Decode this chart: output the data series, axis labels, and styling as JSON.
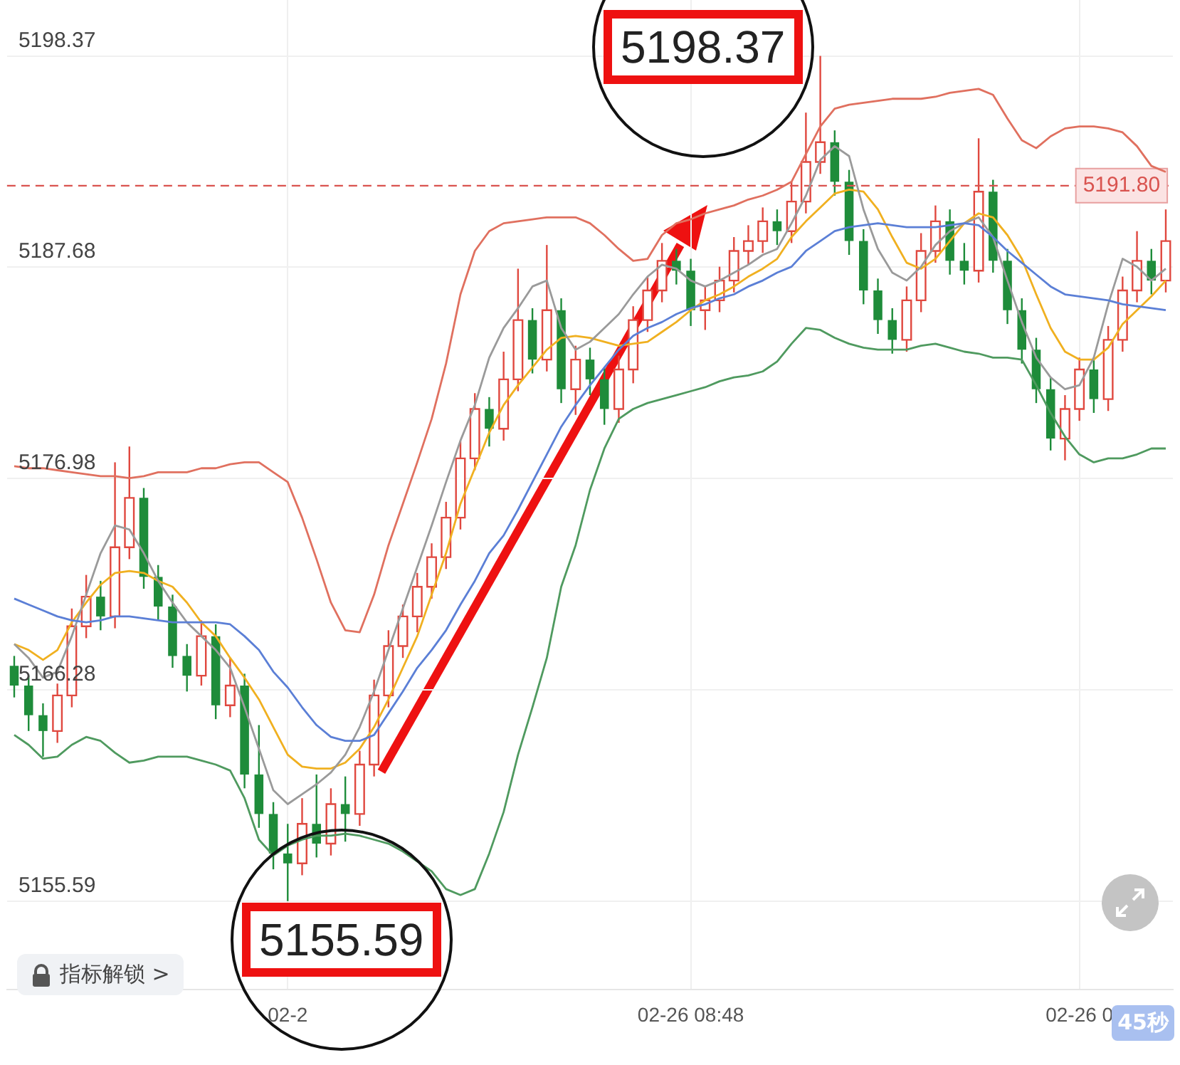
{
  "chart_data": {
    "type": "candlestick",
    "categories": [
      null,
      null,
      null,
      null,
      null,
      null,
      null,
      null,
      null,
      null,
      null,
      null,
      null,
      null,
      null,
      null,
      null,
      null,
      null,
      "02-2",
      null,
      null,
      null,
      null,
      null,
      null,
      null,
      null,
      null,
      null,
      null,
      null,
      null,
      null,
      null,
      null,
      null,
      null,
      null,
      null,
      null,
      null,
      null,
      null,
      null,
      null,
      null,
      "02-26 08:48",
      null,
      null,
      null,
      null,
      null,
      null,
      null,
      null,
      null,
      null,
      null,
      null,
      null,
      null,
      null,
      null,
      null,
      null,
      null,
      null,
      null,
      null,
      null,
      null,
      null,
      null,
      "02-26 0",
      null,
      null,
      null,
      null,
      null,
      null
    ],
    "ohlc": [
      [
        5167.5,
        5168.0,
        5165.9,
        5166.5
      ],
      [
        5166.5,
        5167.0,
        5164.2,
        5165.0
      ],
      [
        5165.0,
        5165.6,
        5162.9,
        5164.2
      ],
      [
        5164.2,
        5166.6,
        5163.6,
        5166.0
      ],
      [
        5166.0,
        5170.4,
        5165.4,
        5169.5
      ],
      [
        5169.5,
        5172.1,
        5168.9,
        5171.0
      ],
      [
        5171.0,
        5171.8,
        5169.3,
        5170.0
      ],
      [
        5170.0,
        5177.8,
        5169.4,
        5173.5
      ],
      [
        5173.5,
        5178.6,
        5172.9,
        5176.0
      ],
      [
        5176.0,
        5176.5,
        5171.4,
        5172.0
      ],
      [
        5172.0,
        5172.6,
        5169.8,
        5170.5
      ],
      [
        5170.5,
        5171.1,
        5167.4,
        5168.0
      ],
      [
        5168.0,
        5168.6,
        5166.2,
        5167.0
      ],
      [
        5167.0,
        5169.8,
        5166.5,
        5169.0
      ],
      [
        5169.0,
        5169.6,
        5164.8,
        5165.5
      ],
      [
        5165.5,
        5167.9,
        5164.9,
        5166.5
      ],
      [
        5166.5,
        5167.1,
        5161.3,
        5162.0
      ],
      [
        5162.0,
        5164.5,
        5159.3,
        5160.0
      ],
      [
        5160.0,
        5160.6,
        5157.2,
        5158.0
      ],
      [
        5158.0,
        5159.5,
        5155.59,
        5157.5
      ],
      [
        5157.5,
        5160.8,
        5156.9,
        5159.5
      ],
      [
        5159.5,
        5162.0,
        5157.8,
        5158.5
      ],
      [
        5158.5,
        5161.3,
        5157.9,
        5160.5
      ],
      [
        5160.5,
        5161.9,
        5158.6,
        5160.0
      ],
      [
        5160.0,
        5163.2,
        5159.4,
        5162.5
      ],
      [
        5162.5,
        5166.8,
        5161.9,
        5166.0
      ],
      [
        5166.0,
        5169.3,
        5165.4,
        5168.5
      ],
      [
        5168.5,
        5170.6,
        5167.9,
        5170.0
      ],
      [
        5170.0,
        5172.2,
        5169.2,
        5171.5
      ],
      [
        5171.5,
        5173.7,
        5170.9,
        5173.0
      ],
      [
        5173.0,
        5175.8,
        5172.4,
        5175.0
      ],
      [
        5175.0,
        5178.9,
        5174.4,
        5178.0
      ],
      [
        5178.0,
        5181.3,
        5177.4,
        5180.5
      ],
      [
        5180.5,
        5181.1,
        5178.6,
        5179.5
      ],
      [
        5179.5,
        5183.4,
        5178.9,
        5182.0
      ],
      [
        5182.0,
        5187.6,
        5181.4,
        5185.0
      ],
      [
        5185.0,
        5185.6,
        5182.3,
        5183.0
      ],
      [
        5183.0,
        5188.8,
        5182.4,
        5185.5
      ],
      [
        5185.5,
        5186.1,
        5180.8,
        5181.5
      ],
      [
        5181.5,
        5183.7,
        5180.2,
        5183.0
      ],
      [
        5183.0,
        5183.6,
        5181.2,
        5182.0
      ],
      [
        5182.0,
        5182.6,
        5179.7,
        5180.5
      ],
      [
        5180.5,
        5183.2,
        5179.8,
        5182.5
      ],
      [
        5182.5,
        5185.7,
        5181.8,
        5185.0
      ],
      [
        5185.0,
        5187.2,
        5184.4,
        5186.5
      ],
      [
        5186.5,
        5188.9,
        5185.9,
        5188.0
      ],
      [
        5188.0,
        5188.6,
        5186.8,
        5187.5
      ],
      [
        5187.5,
        5188.1,
        5184.7,
        5185.5
      ],
      [
        5185.5,
        5186.7,
        5184.5,
        5186.0
      ],
      [
        5186.0,
        5187.7,
        5185.4,
        5187.0
      ],
      [
        5187.0,
        5189.2,
        5186.4,
        5188.5
      ],
      [
        5188.5,
        5189.8,
        5187.8,
        5189.0
      ],
      [
        5189.0,
        5190.7,
        5188.4,
        5190.0
      ],
      [
        5190.0,
        5190.6,
        5188.8,
        5189.5
      ],
      [
        5189.5,
        5192.0,
        5188.9,
        5191.0
      ],
      [
        5191.0,
        5195.5,
        5190.4,
        5193.0
      ],
      [
        5193.0,
        5198.37,
        5192.4,
        5194.0
      ],
      [
        5194.0,
        5194.6,
        5191.3,
        5192.0
      ],
      [
        5192.0,
        5192.6,
        5188.3,
        5189.0
      ],
      [
        5189.0,
        5189.6,
        5185.8,
        5186.5
      ],
      [
        5186.5,
        5187.1,
        5184.3,
        5185.0
      ],
      [
        5185.0,
        5185.6,
        5183.3,
        5184.0
      ],
      [
        5184.0,
        5186.7,
        5183.4,
        5186.0
      ],
      [
        5186.0,
        5189.4,
        5185.4,
        5188.5
      ],
      [
        5188.5,
        5190.8,
        5187.9,
        5190.0
      ],
      [
        5190.0,
        5190.6,
        5187.3,
        5188.0
      ],
      [
        5188.0,
        5188.9,
        5186.8,
        5187.5
      ],
      [
        5187.5,
        5194.2,
        5186.9,
        5191.5
      ],
      [
        5191.5,
        5192.1,
        5187.4,
        5188.0
      ],
      [
        5188.0,
        5188.6,
        5184.8,
        5185.5
      ],
      [
        5185.5,
        5186.1,
        5182.8,
        5183.5
      ],
      [
        5183.5,
        5184.1,
        5180.8,
        5181.5
      ],
      [
        5181.5,
        5182.1,
        5178.4,
        5179.0
      ],
      [
        5179.0,
        5181.2,
        5177.9,
        5180.5
      ],
      [
        5180.5,
        5183.1,
        5179.9,
        5182.5
      ],
      [
        5182.5,
        5183.1,
        5180.3,
        5181.0
      ],
      [
        5181.0,
        5184.7,
        5180.4,
        5184.0
      ],
      [
        5184.0,
        5187.2,
        5183.4,
        5186.5
      ],
      [
        5186.5,
        5189.5,
        5185.9,
        5188.0
      ],
      [
        5188.0,
        5188.6,
        5186.3,
        5187.0
      ],
      [
        5187.0,
        5190.6,
        5186.4,
        5189.0
      ]
    ],
    "series": [
      {
        "type": "line",
        "color": "#e0705f",
        "values": [
          5177.6,
          5177.5,
          5177.5,
          5177.4,
          5177.3,
          5177.2,
          5177.1,
          5177.1,
          5177.0,
          5177.1,
          5177.3,
          5177.3,
          5177.3,
          5177.5,
          5177.5,
          5177.7,
          5177.8,
          5177.8,
          5177.3,
          5176.8,
          5175.0,
          5172.9,
          5170.7,
          5169.3,
          5169.2,
          5171.1,
          5173.6,
          5175.7,
          5177.8,
          5180.0,
          5182.8,
          5186.3,
          5188.5,
          5189.5,
          5189.9,
          5190.0,
          5190.1,
          5190.2,
          5190.2,
          5190.2,
          5189.9,
          5189.3,
          5188.6,
          5188.0,
          5188.1,
          5189.3,
          5189.9,
          5190.1,
          5190.4,
          5190.6,
          5190.8,
          5191.1,
          5191.3,
          5191.6,
          5192.0,
          5193.4,
          5194.8,
          5195.7,
          5195.9,
          5196.0,
          5196.1,
          5196.2,
          5196.2,
          5196.2,
          5196.3,
          5196.5,
          5196.6,
          5196.7,
          5196.4,
          5195.2,
          5194.1,
          5193.7,
          5194.3,
          5194.7,
          5194.8,
          5194.8,
          5194.7,
          5194.5,
          5193.8,
          5192.8,
          5192.5
        ]
      },
      {
        "type": "line",
        "color": "#4f9a5f",
        "values": [
          5164.0,
          5163.5,
          5162.8,
          5162.9,
          5163.5,
          5163.9,
          5163.7,
          5163.1,
          5162.6,
          5162.7,
          5162.9,
          5162.9,
          5162.9,
          5162.7,
          5162.5,
          5162.2,
          5160.8,
          5158.7,
          5157.9,
          5158.4,
          5158.7,
          5158.9,
          5158.9,
          5159.0,
          5158.9,
          5158.7,
          5158.5,
          5158.1,
          5157.6,
          5157.1,
          5156.2,
          5155.9,
          5156.2,
          5158.0,
          5160.1,
          5163.0,
          5165.4,
          5167.9,
          5171.5,
          5173.6,
          5176.4,
          5178.5,
          5180.0,
          5180.5,
          5180.8,
          5181.0,
          5181.2,
          5181.4,
          5181.6,
          5181.9,
          5182.1,
          5182.2,
          5182.4,
          5182.9,
          5183.8,
          5184.6,
          5184.5,
          5184.1,
          5183.8,
          5183.6,
          5183.5,
          5183.5,
          5183.5,
          5183.7,
          5183.8,
          5183.6,
          5183.4,
          5183.3,
          5183.1,
          5183.1,
          5183.0,
          5181.7,
          5180.3,
          5179.1,
          5178.2,
          5177.8,
          5178.0,
          5178.0,
          5178.2,
          5178.5,
          5178.5
        ]
      },
      {
        "type": "line",
        "color": "#5b7fd6",
        "values": [
          5170.9,
          5170.6,
          5170.3,
          5170.0,
          5169.8,
          5169.7,
          5169.8,
          5170.0,
          5170.0,
          5169.9,
          5169.8,
          5169.7,
          5169.7,
          5169.7,
          5169.7,
          5169.6,
          5169.0,
          5168.3,
          5167.2,
          5166.4,
          5165.4,
          5164.5,
          5163.9,
          5163.7,
          5163.7,
          5164.0,
          5165.1,
          5166.2,
          5167.4,
          5168.3,
          5169.3,
          5170.6,
          5171.8,
          5173.2,
          5174.1,
          5175.4,
          5176.8,
          5178.2,
          5179.6,
          5180.7,
          5181.7,
          5182.6,
          5183.5,
          5184.2,
          5184.6,
          5184.9,
          5185.3,
          5185.6,
          5185.8,
          5186.1,
          5186.3,
          5186.7,
          5187.0,
          5187.4,
          5187.7,
          5188.5,
          5189.0,
          5189.5,
          5189.7,
          5189.8,
          5189.9,
          5189.8,
          5189.7,
          5189.7,
          5189.7,
          5189.8,
          5189.9,
          5189.8,
          5189.2,
          5188.5,
          5187.9,
          5187.3,
          5186.7,
          5186.3,
          5186.2,
          5186.1,
          5186.0,
          5185.8,
          5185.7,
          5185.6,
          5185.5
        ]
      },
      {
        "type": "line",
        "color": "#9a9a9a",
        "values": [
          5168.6,
          5167.9,
          5166.9,
          5167.2,
          5169.0,
          5171.1,
          5173.2,
          5174.6,
          5174.4,
          5173.2,
          5171.8,
          5170.7,
          5169.7,
          5169.0,
          5168.3,
          5167.4,
          5165.4,
          5163.3,
          5161.2,
          5160.5,
          5161.0,
          5161.5,
          5162.1,
          5163.0,
          5164.4,
          5166.2,
          5168.3,
          5170.4,
          5172.5,
          5174.6,
          5176.8,
          5178.9,
          5180.7,
          5183.1,
          5184.6,
          5185.6,
          5186.7,
          5187.0,
          5184.6,
          5183.5,
          5183.9,
          5184.6,
          5185.3,
          5186.3,
          5187.2,
          5187.8,
          5187.6,
          5187.0,
          5186.7,
          5187.0,
          5187.4,
          5187.8,
          5188.3,
          5188.6,
          5189.9,
          5191.3,
          5193.1,
          5193.8,
          5193.3,
          5190.6,
          5188.6,
          5187.4,
          5187.0,
          5187.7,
          5188.8,
          5189.5,
          5189.9,
          5190.2,
          5189.2,
          5187.0,
          5184.9,
          5183.1,
          5182.1,
          5181.5,
          5181.7,
          5183.1,
          5185.8,
          5188.1,
          5187.7,
          5187.0,
          5187.6
        ]
      },
      {
        "type": "line",
        "color": "#f0b020",
        "values": [
          5168.6,
          5168.3,
          5167.8,
          5168.3,
          5169.7,
          5170.7,
          5171.6,
          5172.2,
          5172.3,
          5172.2,
          5171.8,
          5171.5,
          5170.7,
          5169.7,
          5169.0,
          5167.9,
          5166.9,
          5165.8,
          5164.4,
          5163.0,
          5162.4,
          5162.3,
          5162.3,
          5162.6,
          5163.3,
          5164.4,
          5165.8,
          5167.4,
          5169.0,
          5171.1,
          5173.2,
          5175.7,
          5177.5,
          5179.3,
          5180.7,
          5181.7,
          5182.6,
          5183.5,
          5184.1,
          5184.2,
          5184.1,
          5183.9,
          5183.7,
          5183.8,
          5183.9,
          5184.4,
          5184.9,
          5185.5,
          5186.0,
          5186.3,
          5186.7,
          5187.2,
          5187.6,
          5188.1,
          5189.2,
          5190.0,
          5190.7,
          5191.4,
          5191.6,
          5191.5,
          5190.6,
          5189.2,
          5187.9,
          5187.6,
          5188.1,
          5189.0,
          5189.9,
          5190.4,
          5190.2,
          5189.3,
          5188.1,
          5186.3,
          5184.6,
          5183.4,
          5183.0,
          5183.0,
          5183.6,
          5184.8,
          5185.5,
          5186.2,
          5187.0
        ]
      }
    ],
    "ylim": [
      5151.1,
      5201.2
    ],
    "yticks": [
      5155.59,
      5166.28,
      5176.98,
      5187.68,
      5198.37
    ],
    "grid": true,
    "marker": "none",
    "ref_lines": [
      {
        "axis": "y",
        "value": 5191.8,
        "label": "5191.80",
        "color": "#d9534f",
        "line_style": "dashed"
      }
    ],
    "annotations": [
      "5198.37",
      "5155.59",
      "指标解锁 >",
      "45秒"
    ]
  }
}
